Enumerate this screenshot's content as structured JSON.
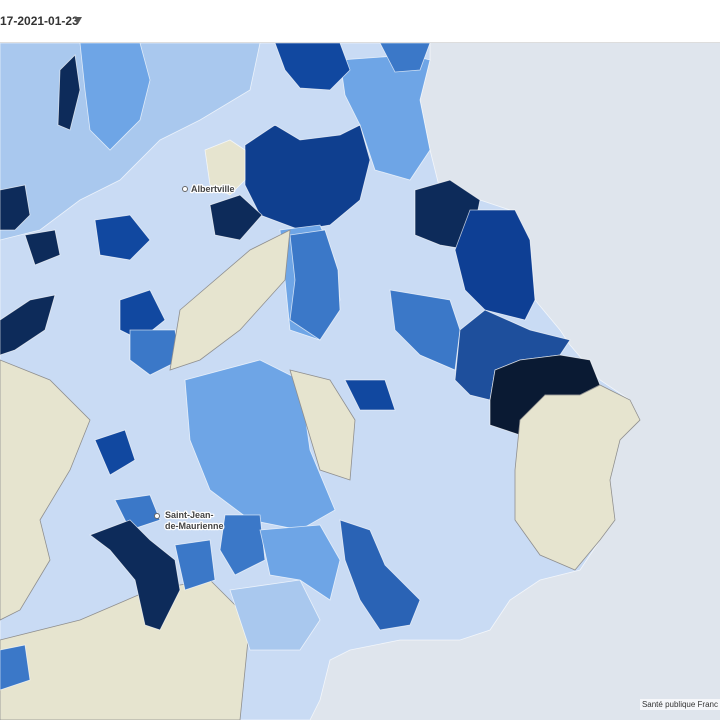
{
  "header": {
    "date_selector": "17-2021-01-23"
  },
  "map": {
    "labels": [
      "Albertville",
      "Saint-Jean-",
      "de-Maurienne"
    ]
  },
  "attribution": "Santé publique Franc"
}
